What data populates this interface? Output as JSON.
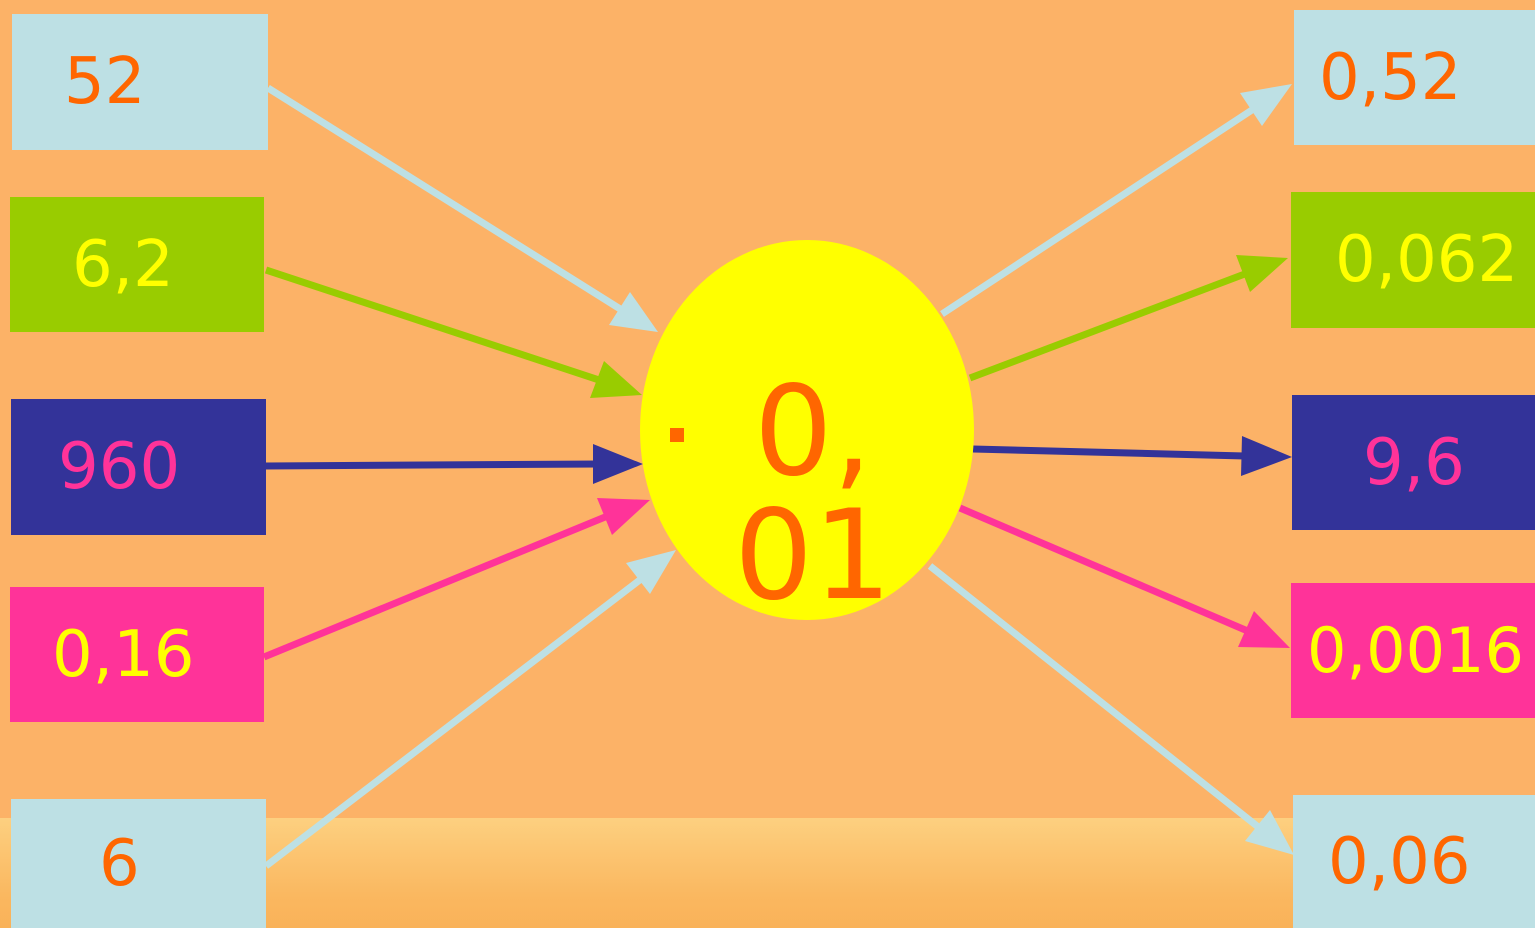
{
  "inputs": {
    "a": "52",
    "b": "6,2",
    "c": "960",
    "d": "0,16",
    "e": "6"
  },
  "operator": {
    "symbol": "·",
    "value": "0,01"
  },
  "outputs": {
    "a": "0,52",
    "b": "0,062",
    "c": "9,6",
    "d": "0,0016",
    "e": "0,06"
  },
  "colors": {
    "background": "#FCB267",
    "light_blue": "#BDE0E4",
    "green": "#99CC00",
    "navy": "#333399",
    "pink": "#FF3399",
    "yellow": "#FFFF00",
    "orange": "#FF6600"
  }
}
